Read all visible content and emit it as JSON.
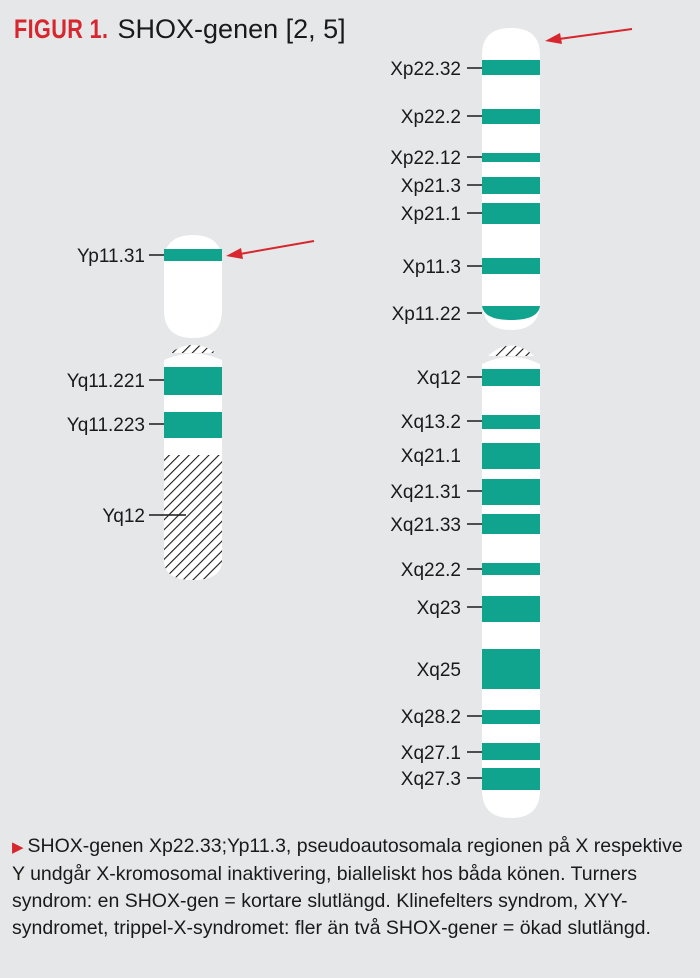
{
  "figure": {
    "label": "FIGUR 1.",
    "title": "SHOX-genen [2, 5]"
  },
  "colors": {
    "background": "#e6e7e8",
    "band": "#10a48e",
    "chromosome": "#ffffff",
    "arrow": "#d8262e"
  },
  "y_chromosome": {
    "labels": [
      "Yp11.31",
      "Yq11.221",
      "Yq11.223",
      "Yq12"
    ],
    "highlight_band": "Yp11.31"
  },
  "x_chromosome": {
    "labels": [
      "Xp22.32",
      "Xp22.2",
      "Xp22.12",
      "Xp21.3",
      "Xp21.1",
      "Xp11.3",
      "Xp11.22",
      "Xq12",
      "Xq13.2",
      "Xq21.1",
      "Xq21.31",
      "Xq21.33",
      "Xq22.2",
      "Xq23",
      "Xq25",
      "Xq28.2",
      "Xq27.1",
      "Xq27.3"
    ],
    "highlight_band": "Xp22.32"
  },
  "caption": {
    "marker": "▶",
    "text": "SHOX-genen Xp22.33;Yp11.3, pseudoautosomala regionen på X respektive Y undgår X-kromosomal inaktivering, bialleliskt hos båda könen. Turners syndrom: en SHOX-gen = kortare slutlängd. Klinefelters syndrom, XYY-syndromet, trippel-X-syndromet: fler än två SHOX-gener = ökad slutlängd."
  }
}
